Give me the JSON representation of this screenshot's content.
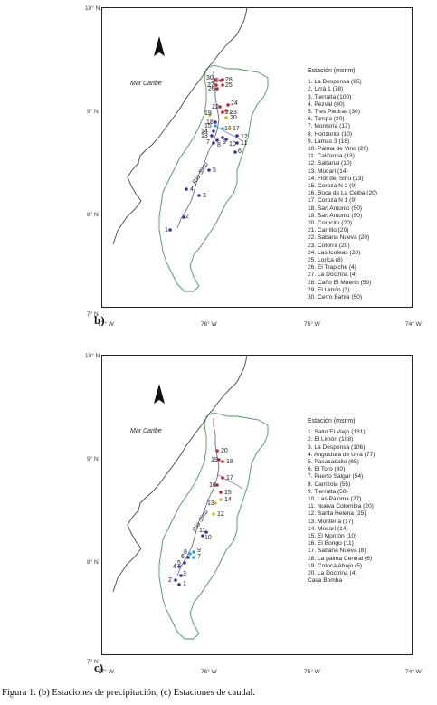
{
  "panel_b": {
    "label": "b)",
    "sea_label": "Mar Caribe",
    "river_label": "Río Sinú",
    "legend_title": "Estación (msnm)",
    "stations": [
      "1. La Despensa (85)",
      "2. Urrá 1 (78)",
      "3. Tierralta (100)",
      "4. Pezval (80)",
      "5. Tres Piedras (30)",
      "6. Tampa (20)",
      "7. Montería (17)",
      "8. Horizonte (10)",
      "9. Lamas 3 (18)",
      "10. Palma de Vino (20)",
      "11. California (13)",
      "12. Sabanal (10)",
      "13. Mocarí (14)",
      "14. Flor del Sinú (13)",
      "15. Coroza N 2 (9)",
      "16. Boca de La Ceiba (20)",
      "17. Coroza N 1 (9)",
      "18. San Antonio (50)",
      "19. San Antonio (50)",
      "20. Corocito (20)",
      "21. Carrillo (20)",
      "22. Sabana Nueva (20)",
      "23. Cotorra (20)",
      "24. Las Icoteas (20)",
      "25. Lorica (8)",
      "26. El Trapiche (4)",
      "27. La Doctrina (4)",
      "28. Caño El Muerto (50)",
      "29. El Limón (3)",
      "30. Cerro Bahía (50)"
    ],
    "y_ticks": [
      "10° N",
      "9° N",
      "8° N",
      "7° N"
    ],
    "x_ticks": [
      "77° W",
      "76° W",
      "75° W",
      "74° W"
    ],
    "point_numbers": [
      "1",
      "2",
      "3",
      "4",
      "5",
      "6",
      "7",
      "8",
      "9",
      "10",
      "11",
      "12",
      "13",
      "14",
      "15",
      "16",
      "17",
      "18",
      "19",
      "20",
      "21",
      "22",
      "23",
      "24",
      "25",
      "26",
      "27",
      "28",
      "29",
      "30"
    ]
  },
  "panel_c": {
    "label": "c)",
    "sea_label": "Mar Caribe",
    "river_label": "Río Sinú",
    "legend_title": "Estación (msnm)",
    "stations": [
      "1. Salto El Viejo (131)",
      "2. El Limón (108)",
      "3. La Despensa (106)",
      "4. Angostura de Urrá (77)",
      "5. Pasacaballo (65)",
      "6. El Toro (60)",
      "7. Puerto Salgar (54)",
      "8. Carrizola (55)",
      "9. Tierralta (50)",
      "10. Las Paloma (27)",
      "11. Nueva Colombia (20)",
      "12. Santa Helena (25)",
      "13. Montería (17)",
      "14. Mocarí (14)",
      "15. El Montón (10)",
      "16. El Bongo (11)",
      "17. Sabana Nueva (8)",
      "18. La palma Central (6)",
      "19. Cotocá Abajo (5)",
      "20. La Doctrina (4)",
      "Casa Bomba"
    ],
    "y_ticks": [
      "10° N",
      "9° N",
      "8° N",
      "7° N"
    ],
    "x_ticks": [
      "77° W",
      "76° W",
      "75° W",
      "74° W"
    ],
    "point_numbers": [
      "1",
      "2",
      "3",
      "4",
      "5",
      "6",
      "7",
      "8",
      "9",
      "10",
      "11",
      "12",
      "13",
      "14",
      "15",
      "16",
      "17",
      "18",
      "19",
      "20"
    ]
  },
  "caption": "Figura 1. (b) Estaciones de precipitación, (c) Estaciones de caudal.",
  "colors": {
    "coast": "#444444",
    "basin": "#4a9a5a",
    "river": "#5555aa",
    "dot_blue": "#3333aa",
    "dot_red": "#cc2222",
    "dot_yellow": "#e0b020",
    "dot_cyan": "#22aacc"
  }
}
